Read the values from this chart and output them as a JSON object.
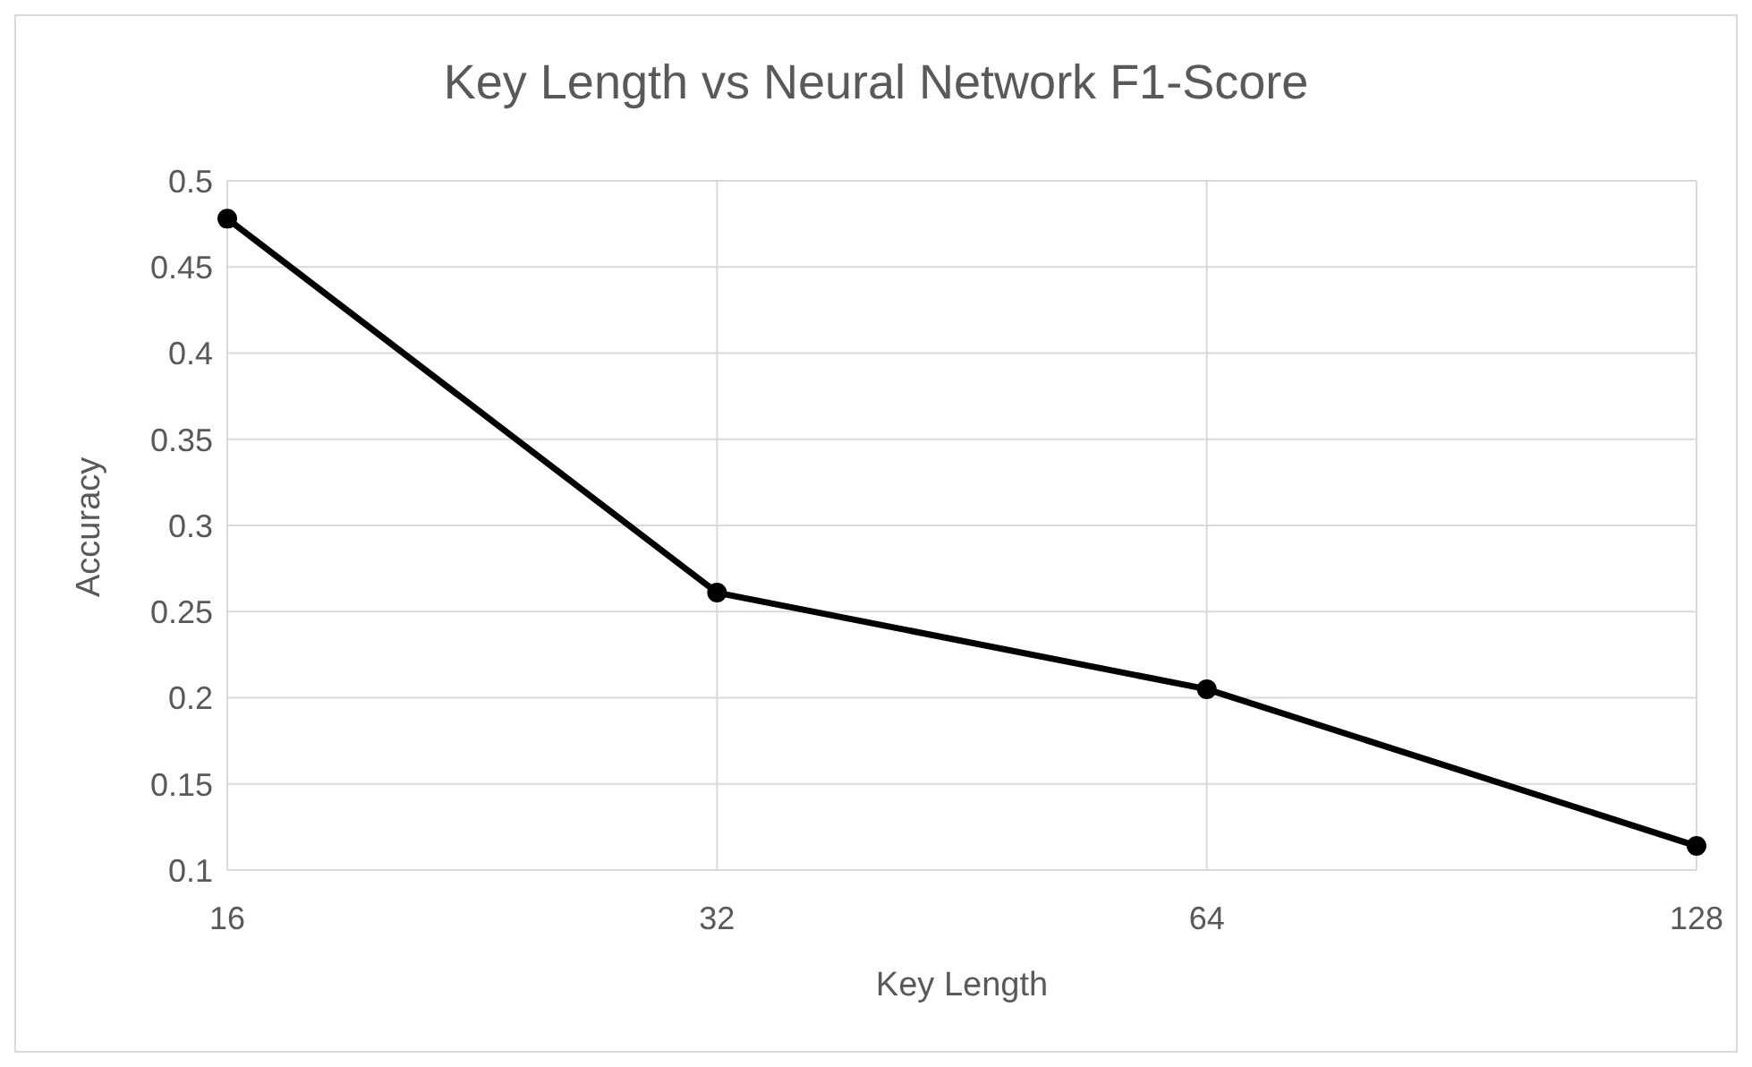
{
  "chart_data": {
    "type": "line",
    "title": "Key Length vs Neural Network F1-Score",
    "xlabel": "Key Length",
    "ylabel": "Accuracy",
    "categories": [
      "16",
      "32",
      "64",
      "128"
    ],
    "series": [
      {
        "color": "#000000",
        "values": [
          0.478,
          0.261,
          0.205,
          0.114
        ]
      }
    ],
    "ylim": [
      0.1,
      0.5
    ],
    "yticks": [
      0.1,
      0.15,
      0.2,
      0.25,
      0.3,
      0.35,
      0.4,
      0.45,
      0.5
    ],
    "grid": true,
    "legend": false,
    "marker": "circle",
    "line_style": "solid"
  }
}
